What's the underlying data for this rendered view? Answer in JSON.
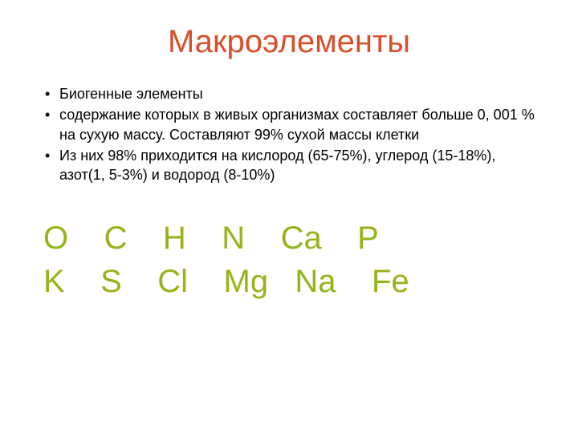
{
  "title": {
    "text": "Макроэлементы",
    "color": "#d94f2a"
  },
  "bullets": {
    "item1": "Биогенные элементы",
    "item2": "содержание которых в живых организмах составляет больше 0, 001 % на сухую массу. Составляют 99% сухой массы клетки",
    "item3": "Из них 98% приходится на кислород (65-75%), углерод (15-18%), азот(1, 5-3%) и водород (8-10%)"
  },
  "elements": {
    "color": "#92b51a",
    "row1": "O    C    H    N    Ca    P",
    "row2": "K    S    Cl    Mg   Na    Fe"
  }
}
